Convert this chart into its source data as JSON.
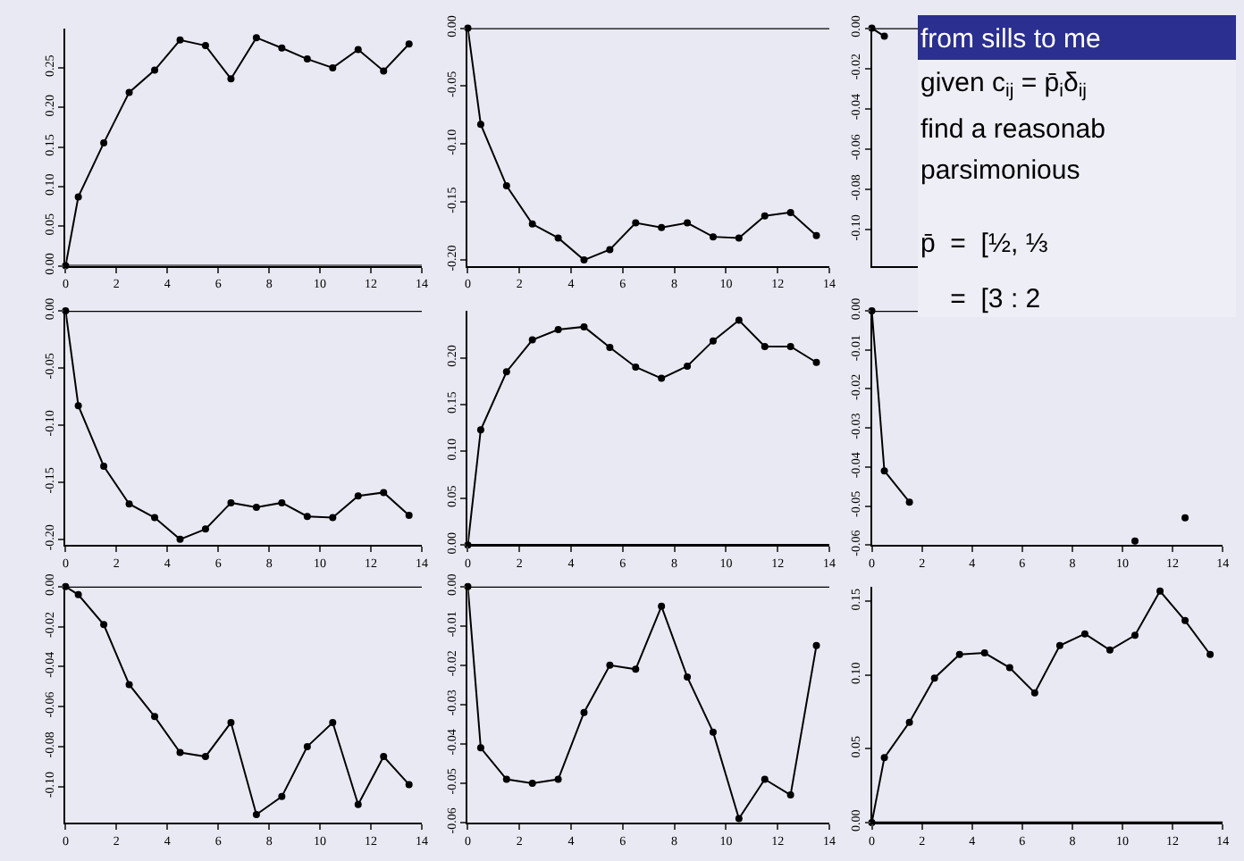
{
  "chart_data": [
    {
      "type": "line",
      "x": [
        0,
        0.5,
        1.5,
        2.5,
        3.5,
        4.5,
        5.5,
        6.5,
        7.5,
        8.5,
        9.5,
        10.5,
        11.5,
        12.5,
        13.5
      ],
      "values": [
        0,
        0.087,
        0.155,
        0.219,
        0.247,
        0.285,
        0.278,
        0.236,
        0.288,
        0.275,
        0.261,
        0.25,
        0.273,
        0.246,
        0.28
      ],
      "color": "#000000",
      "xlim": [
        0,
        14
      ],
      "xticks": [
        0,
        2,
        4,
        6,
        8,
        10,
        12,
        14
      ],
      "ylim": [
        0,
        0.3
      ],
      "yticks": [
        {
          "value": 0,
          "label": "0.00"
        },
        {
          "value": 0.05,
          "label": "0.05"
        },
        {
          "value": 0.1,
          "label": "0.10"
        },
        {
          "value": 0.15,
          "label": "0.15"
        },
        {
          "value": 0.2,
          "label": "0.20"
        },
        {
          "value": 0.25,
          "label": "0.25"
        }
      ],
      "ref_lines": [
        {
          "axis": "y",
          "value": 0
        }
      ],
      "marker": "circle",
      "line_style": "solid"
    },
    {
      "type": "line",
      "x": [
        0,
        0.5,
        1.5,
        2.5,
        3.5,
        4.5,
        5.5,
        6.5,
        7.5,
        8.5,
        9.5,
        10.5,
        11.5,
        12.5,
        13.5
      ],
      "values": [
        0,
        -0.083,
        -0.136,
        -0.169,
        -0.181,
        -0.2,
        -0.191,
        -0.168,
        -0.172,
        -0.168,
        -0.18,
        -0.181,
        -0.162,
        -0.159,
        -0.179
      ],
      "color": "#000000",
      "xlim": [
        0,
        14
      ],
      "xticks": [
        0,
        2,
        4,
        6,
        8,
        10,
        12,
        14
      ],
      "ylim": [
        -0.205,
        0
      ],
      "yticks": [
        {
          "value": -0.2,
          "label": "-0.20"
        },
        {
          "value": -0.15,
          "label": "-0.15"
        },
        {
          "value": -0.1,
          "label": "-0.10"
        },
        {
          "value": -0.05,
          "label": "-0.05"
        },
        {
          "value": 0,
          "label": "0.00"
        }
      ],
      "ref_lines": [
        {
          "axis": "y",
          "value": 0
        }
      ],
      "marker": "circle",
      "line_style": "solid"
    },
    {
      "type": "line",
      "x": [
        0,
        0.5
      ],
      "values": [
        0,
        -0.004
      ],
      "color": "#000000",
      "xlim": [
        0,
        14
      ],
      "ylim": [
        -0.118,
        0
      ],
      "yticks": [
        {
          "value": -0.1,
          "label": "-0.10"
        },
        {
          "value": -0.08,
          "label": "-0.08"
        },
        {
          "value": -0.06,
          "label": "-0.06"
        },
        {
          "value": -0.04,
          "label": "-0.04"
        },
        {
          "value": -0.02,
          "label": "-0.02"
        },
        {
          "value": 0,
          "label": "0.00"
        }
      ],
      "tick_labels": "y",
      "ref_lines": [
        {
          "axis": "y",
          "value": 0
        }
      ],
      "marker": "circle",
      "line_style": "solid"
    },
    {
      "type": "line",
      "x": [
        0,
        0.5,
        1.5,
        2.5,
        3.5,
        4.5,
        5.5,
        6.5,
        7.5,
        8.5,
        9.5,
        10.5,
        11.5,
        12.5,
        13.5
      ],
      "values": [
        0,
        -0.083,
        -0.136,
        -0.169,
        -0.181,
        -0.2,
        -0.191,
        -0.168,
        -0.172,
        -0.168,
        -0.18,
        -0.181,
        -0.162,
        -0.159,
        -0.179
      ],
      "color": "#000000",
      "xlim": [
        0,
        14
      ],
      "xticks": [
        0,
        2,
        4,
        6,
        8,
        10,
        12,
        14
      ],
      "ylim": [
        -0.205,
        0
      ],
      "yticks": [
        {
          "value": -0.2,
          "label": "-0.20"
        },
        {
          "value": -0.15,
          "label": "-0.15"
        },
        {
          "value": -0.1,
          "label": "-0.10"
        },
        {
          "value": -0.05,
          "label": "-0.05"
        },
        {
          "value": 0,
          "label": "0.00"
        }
      ],
      "ref_lines": [
        {
          "axis": "y",
          "value": 0
        }
      ],
      "marker": "circle",
      "line_style": "solid"
    },
    {
      "type": "line",
      "x": [
        0,
        0.5,
        1.5,
        2.5,
        3.5,
        4.5,
        5.5,
        6.5,
        7.5,
        8.5,
        9.5,
        10.5,
        11.5,
        12.5,
        13.5
      ],
      "values": [
        0,
        0.123,
        0.185,
        0.219,
        0.23,
        0.233,
        0.211,
        0.19,
        0.178,
        0.191,
        0.218,
        0.24,
        0.212,
        0.212,
        0.195
      ],
      "color": "#000000",
      "xlim": [
        0,
        14
      ],
      "xticks": [
        0,
        2,
        4,
        6,
        8,
        10,
        12,
        14
      ],
      "ylim": [
        0,
        0.25
      ],
      "yticks": [
        {
          "value": 0,
          "label": "0.00"
        },
        {
          "value": 0.05,
          "label": "0.05"
        },
        {
          "value": 0.1,
          "label": "0.10"
        },
        {
          "value": 0.15,
          "label": "0.15"
        },
        {
          "value": 0.2,
          "label": "0.20"
        }
      ],
      "ref_lines": [
        {
          "axis": "y",
          "value": 0
        }
      ],
      "marker": "circle",
      "line_style": "solid"
    },
    {
      "type": "line",
      "x": [
        0,
        0.5,
        1.5,
        6,
        10.5,
        11.5,
        12.5
      ],
      "values": [
        0,
        -0.041,
        -0.049,
        null,
        -0.059,
        null,
        -0.053
      ],
      "color": "#000000",
      "xlim": [
        0,
        14
      ],
      "xticks": [
        0,
        2,
        4,
        6,
        8,
        10,
        12,
        14
      ],
      "ylim": [
        -0.06,
        0
      ],
      "yticks": [
        {
          "value": -0.06,
          "label": "-0.06"
        },
        {
          "value": -0.05,
          "label": "-0.05"
        },
        {
          "value": -0.04,
          "label": "-0.04"
        },
        {
          "value": -0.03,
          "label": "-0.03"
        },
        {
          "value": -0.02,
          "label": "-0.02"
        },
        {
          "value": -0.01,
          "label": "-0.01"
        },
        {
          "value": 0,
          "label": "0.00"
        }
      ],
      "ref_lines": [
        {
          "axis": "y",
          "value": 0
        }
      ],
      "marker": "circle",
      "line_style": "solid"
    },
    {
      "type": "line",
      "x": [
        0,
        0.5,
        1.5,
        2.5,
        3.5,
        4.5,
        5.5,
        6.5,
        7.5,
        8.5,
        9.5,
        10.5,
        11.5,
        12.5,
        13.5
      ],
      "values": [
        0,
        -0.004,
        -0.019,
        -0.049,
        -0.065,
        -0.083,
        -0.085,
        -0.068,
        -0.114,
        -0.105,
        -0.08,
        -0.068,
        -0.109,
        -0.085,
        -0.099
      ],
      "color": "#000000",
      "xlim": [
        0,
        14
      ],
      "xticks": [
        0,
        2,
        4,
        6,
        8,
        10,
        12,
        14
      ],
      "ylim": [
        -0.118,
        0
      ],
      "yticks": [
        {
          "value": -0.1,
          "label": "-0.10"
        },
        {
          "value": -0.08,
          "label": "-0.08"
        },
        {
          "value": -0.06,
          "label": "-0.06"
        },
        {
          "value": -0.04,
          "label": "-0.04"
        },
        {
          "value": -0.02,
          "label": "-0.02"
        },
        {
          "value": 0,
          "label": "0.00"
        }
      ],
      "ref_lines": [
        {
          "axis": "y",
          "value": 0
        }
      ],
      "marker": "circle",
      "line_style": "solid"
    },
    {
      "type": "line",
      "x": [
        0,
        0.5,
        1.5,
        2.5,
        3.5,
        4.5,
        5.5,
        6.5,
        7.5,
        8.5,
        9.5,
        10.5,
        11.5,
        12.5,
        13.5
      ],
      "values": [
        0,
        -0.041,
        -0.049,
        -0.05,
        -0.049,
        -0.032,
        -0.02,
        -0.021,
        -0.005,
        -0.023,
        -0.037,
        -0.059,
        -0.049,
        -0.053,
        -0.015
      ],
      "color": "#000000",
      "xlim": [
        0,
        14
      ],
      "xticks": [
        0,
        2,
        4,
        6,
        8,
        10,
        12,
        14
      ],
      "ylim": [
        -0.06,
        0
      ],
      "yticks": [
        {
          "value": -0.06,
          "label": "-0.06"
        },
        {
          "value": -0.05,
          "label": "-0.05"
        },
        {
          "value": -0.04,
          "label": "-0.04"
        },
        {
          "value": -0.03,
          "label": "-0.03"
        },
        {
          "value": -0.02,
          "label": "-0.02"
        },
        {
          "value": -0.01,
          "label": "-0.01"
        },
        {
          "value": 0,
          "label": "0.00"
        }
      ],
      "ref_lines": [
        {
          "axis": "y",
          "value": 0
        }
      ],
      "marker": "circle",
      "line_style": "solid"
    },
    {
      "type": "line",
      "x": [
        0,
        0.5,
        1.5,
        2.5,
        3.5,
        4.5,
        5.5,
        6.5,
        7.5,
        8.5,
        9.5,
        10.5,
        11.5,
        12.5,
        13.5
      ],
      "values": [
        0,
        0.044,
        0.068,
        0.098,
        0.114,
        0.115,
        0.105,
        0.088,
        0.12,
        0.128,
        0.117,
        0.127,
        0.157,
        0.137,
        0.114
      ],
      "color": "#000000",
      "xlim": [
        0,
        14
      ],
      "xticks": [
        0,
        2,
        4,
        6,
        8,
        10,
        12,
        14
      ],
      "ylim": [
        0,
        0.16
      ],
      "yticks": [
        {
          "value": 0,
          "label": "0.00"
        },
        {
          "value": 0.05,
          "label": "0.05"
        },
        {
          "value": 0.1,
          "label": "0.10"
        },
        {
          "value": 0.15,
          "label": "0.15"
        }
      ],
      "ref_lines": [
        {
          "axis": "y",
          "value": 0
        }
      ],
      "marker": "circle",
      "line_style": "solid"
    },
    {
      "type": "other",
      "title": "from sills to me",
      "annotations": [
        "given c$_{ij}$ = p̄$_{i}$δ$_{ij}$",
        "find a reasonab",
        "parsimonious",
        "p̄  =  [½, ⅓",
        "    =  [3 : 2"
      ]
    }
  ]
}
